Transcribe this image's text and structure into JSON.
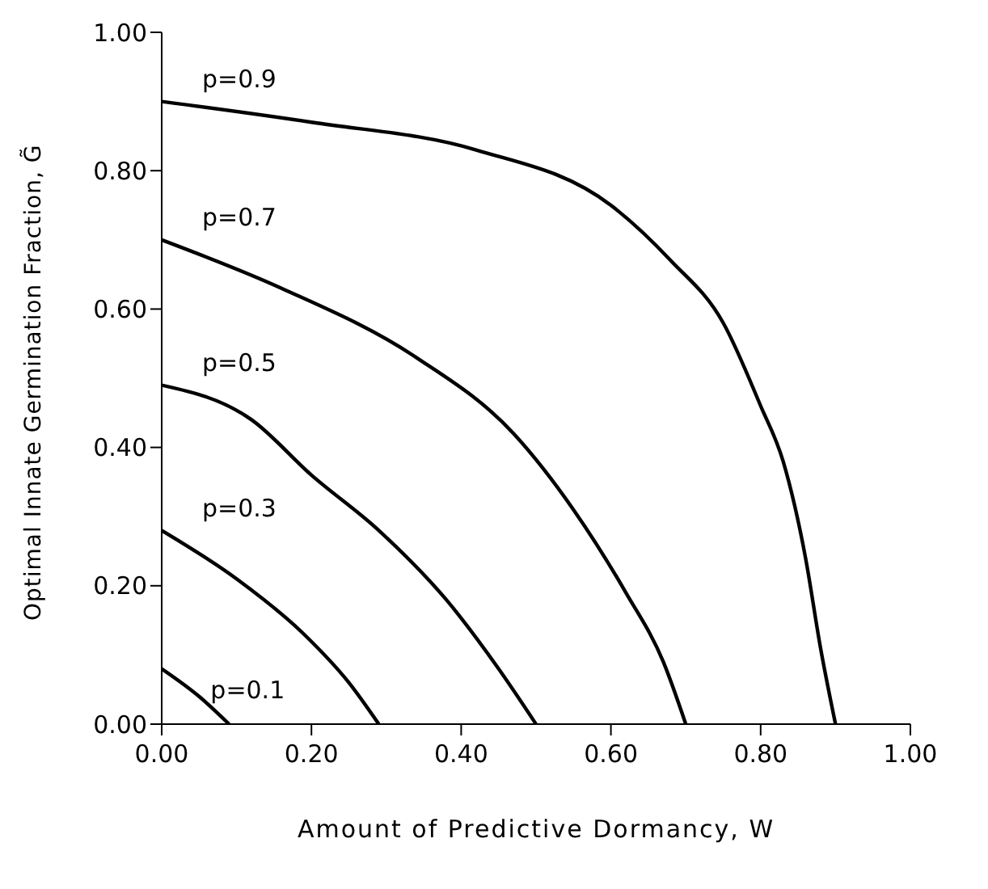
{
  "chart_data": {
    "type": "line",
    "xlabel": "Amount of Predictive Dormancy, W",
    "ylabel": "Optimal Innate Germination Fraction, G̃",
    "xlim": [
      0,
      1
    ],
    "ylim": [
      0,
      1
    ],
    "xticks": [
      {
        "value": 0,
        "label": "0.00"
      },
      {
        "value": 0.2,
        "label": "0.20"
      },
      {
        "value": 0.4,
        "label": "0.40"
      },
      {
        "value": 0.6,
        "label": "0.60"
      },
      {
        "value": 0.8,
        "label": "0.80"
      },
      {
        "value": 1,
        "label": "1.00"
      }
    ],
    "yticks": [
      {
        "value": 0,
        "label": "0.00"
      },
      {
        "value": 0.2,
        "label": "0.20"
      },
      {
        "value": 0.4,
        "label": "0.40"
      },
      {
        "value": 0.6,
        "label": "0.60"
      },
      {
        "value": 0.8,
        "label": "0.80"
      },
      {
        "value": 1,
        "label": "1.00"
      }
    ],
    "grid": false,
    "legend": false,
    "marker": "none",
    "line_style": "solid",
    "series": [
      {
        "name": "p=0.9",
        "color": "#000000",
        "x": [
          0,
          0.2,
          0.42,
          0.6,
          0.68,
          0.75,
          0.8,
          0.83,
          0.86,
          0.88,
          0.9
        ],
        "values": [
          0.9,
          0.87,
          0.83,
          0.75,
          0.67,
          0.58,
          0.46,
          0.38,
          0.24,
          0.11,
          0
        ]
      },
      {
        "name": "p=0.7",
        "color": "#000000",
        "x": [
          0,
          0.16,
          0.34,
          0.47,
          0.55,
          0.62,
          0.67,
          0.7
        ],
        "values": [
          0.7,
          0.63,
          0.53,
          0.42,
          0.31,
          0.19,
          0.09,
          0
        ]
      },
      {
        "name": "p=0.5",
        "color": "#000000",
        "x": [
          0,
          0.12,
          0.2,
          0.29,
          0.38,
          0.45,
          0.5
        ],
        "values": [
          0.49,
          0.44,
          0.36,
          0.28,
          0.18,
          0.08,
          0
        ]
      },
      {
        "name": "p=0.3",
        "color": "#000000",
        "x": [
          0,
          0.1,
          0.19,
          0.25,
          0.29
        ],
        "values": [
          0.28,
          0.21,
          0.13,
          0.06,
          0
        ]
      },
      {
        "name": "p=0.1",
        "color": "#000000",
        "x": [
          0,
          0.05,
          0.09
        ],
        "values": [
          0.08,
          0.04,
          0
        ]
      }
    ]
  }
}
